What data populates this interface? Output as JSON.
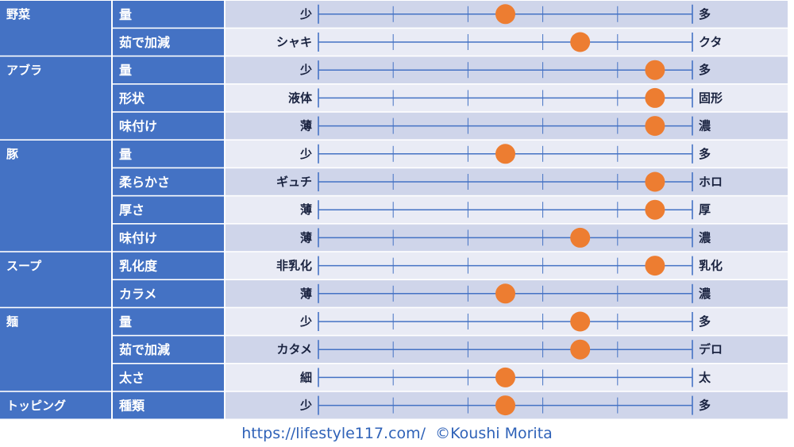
{
  "chart_data": {
    "type": "scatter",
    "scale_steps": 5,
    "groups": [
      {
        "category": "野菜",
        "rows": [
          {
            "attribute": "量",
            "left": "少",
            "right": "多",
            "value": 2.5
          },
          {
            "attribute": "茹で加減",
            "left": "シャキ",
            "right": "クタ",
            "value": 3.5
          }
        ]
      },
      {
        "category": "アブラ",
        "rows": [
          {
            "attribute": "量",
            "left": "少",
            "right": "多",
            "value": 4.5
          },
          {
            "attribute": "形状",
            "left": "液体",
            "right": "固形",
            "value": 4.5
          },
          {
            "attribute": "味付け",
            "left": "薄",
            "right": "濃",
            "value": 4.5
          }
        ]
      },
      {
        "category": "豚",
        "rows": [
          {
            "attribute": "量",
            "left": "少",
            "right": "多",
            "value": 2.5
          },
          {
            "attribute": "柔らかさ",
            "left": "ギュチ",
            "right": "ホロ",
            "value": 4.5
          },
          {
            "attribute": "厚さ",
            "left": "薄",
            "right": "厚",
            "value": 4.5
          },
          {
            "attribute": "味付け",
            "left": "薄",
            "right": "濃",
            "value": 3.5
          }
        ]
      },
      {
        "category": "スープ",
        "rows": [
          {
            "attribute": "乳化度",
            "left": "非乳化",
            "right": "乳化",
            "value": 4.5
          },
          {
            "attribute": "カラメ",
            "left": "薄",
            "right": "濃",
            "value": 2.5
          }
        ]
      },
      {
        "category": "麺",
        "rows": [
          {
            "attribute": "量",
            "left": "少",
            "right": "多",
            "value": 3.5
          },
          {
            "attribute": "茹で加減",
            "left": "カタメ",
            "right": "デロ",
            "value": 3.5
          },
          {
            "attribute": "太さ",
            "left": "細",
            "right": "太",
            "value": 2.5
          }
        ]
      },
      {
        "category": "トッピング",
        "rows": [
          {
            "attribute": "種類",
            "left": "少",
            "right": "多",
            "value": 2.5
          }
        ]
      }
    ],
    "colors": {
      "category_bg": "#4472c4",
      "row_bg_a": "#cfd5ea",
      "row_bg_b": "#e9ebf5",
      "line": "#4472c4",
      "dot": "#ed7d31",
      "label_text": "#1a2340"
    }
  },
  "footer": {
    "text": "https://lifestyle117.com/  ©Koushi Morita"
  }
}
